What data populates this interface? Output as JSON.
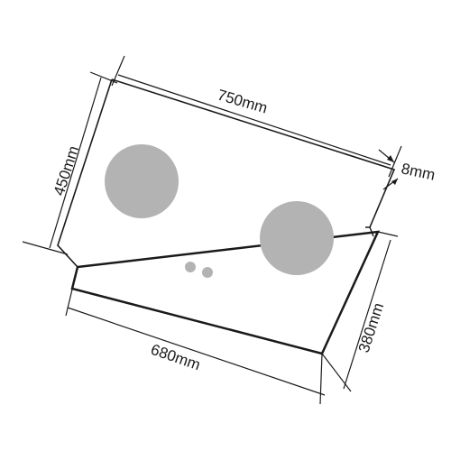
{
  "dimensions": {
    "width": "750mm",
    "depth": "450mm",
    "thickness": "8mm",
    "cutout_width": "680mm",
    "cutout_depth": "380mm"
  },
  "colors": {
    "line": "#1a1a1a",
    "burner": "#b3b3b3",
    "background": "#ffffff"
  }
}
